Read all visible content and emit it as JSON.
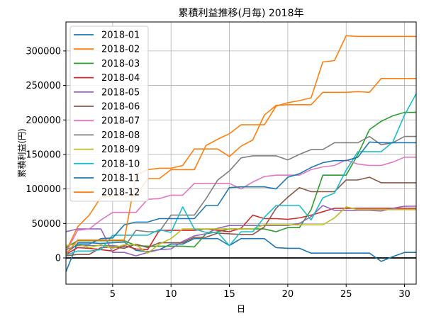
{
  "chart_data": {
    "type": "line",
    "title": "累積利益推移(月毎)  2018年",
    "xlabel": "日",
    "ylabel": "累積利益(円)",
    "xlim": [
      1,
      31
    ],
    "ylim": [
      -38000,
      342000
    ],
    "xticks": [
      5,
      10,
      15,
      20,
      25,
      30
    ],
    "yticks": [
      0,
      50000,
      100000,
      150000,
      200000,
      250000,
      300000
    ],
    "grid": true,
    "legend_position": "top-left",
    "zero_line": {
      "y": 0,
      "color": "#000000"
    },
    "series": [
      {
        "name": "2018-01",
        "color": "#1f77b4",
        "x": [
          1,
          2,
          3,
          4,
          5,
          6,
          7,
          8,
          9,
          10,
          11,
          12,
          13,
          14,
          15,
          16,
          17,
          18,
          19,
          20,
          21,
          22,
          23,
          24,
          25,
          26,
          27,
          28,
          29,
          30,
          31
        ],
        "values": [
          -20000,
          22000,
          22000,
          21000,
          22000,
          23000,
          11000,
          9000,
          12000,
          20000,
          20000,
          28000,
          28000,
          28000,
          18000,
          28000,
          28000,
          28000,
          15000,
          14000,
          14000,
          7000,
          7000,
          7000,
          7000,
          7000,
          7000,
          -5000,
          2000,
          8000,
          8000
        ]
      },
      {
        "name": "2018-02",
        "color": "#ff7f0e",
        "x": [
          1,
          2,
          3,
          4,
          5,
          6,
          7,
          8,
          9,
          10,
          11,
          12,
          13,
          14,
          15,
          16,
          17,
          18,
          19,
          20,
          21,
          22,
          23,
          24,
          25,
          26,
          27,
          28,
          29,
          30,
          31
        ],
        "values": [
          10000,
          45000,
          62000,
          88000,
          90000,
          90000,
          90000,
          115000,
          115000,
          128000,
          128000,
          128000,
          163000,
          172000,
          180000,
          193000,
          193000,
          193000,
          220000,
          225000,
          228000,
          232000,
          284000,
          286000,
          322000,
          321000,
          321000,
          321000,
          321000,
          321000,
          321000
        ]
      },
      {
        "name": "2018-03",
        "color": "#2ca02c",
        "x": [
          1,
          2,
          3,
          4,
          5,
          6,
          7,
          8,
          9,
          10,
          11,
          12,
          13,
          14,
          15,
          16,
          17,
          18,
          19,
          20,
          21,
          22,
          23,
          24,
          25,
          26,
          27,
          28,
          29,
          30,
          31
        ],
        "values": [
          15000,
          25000,
          25000,
          25000,
          25000,
          25000,
          18000,
          17000,
          17000,
          17000,
          17000,
          16000,
          35000,
          38000,
          42000,
          42000,
          42000,
          42000,
          38000,
          44000,
          44000,
          70000,
          120000,
          120000,
          120000,
          150000,
          186000,
          198000,
          206000,
          211000,
          211000
        ]
      },
      {
        "name": "2018-04",
        "color": "#d62728",
        "x": [
          1,
          2,
          3,
          4,
          5,
          6,
          7,
          8,
          9,
          10,
          11,
          12,
          13,
          14,
          15,
          16,
          17,
          18,
          19,
          20,
          21,
          22,
          23,
          24,
          25,
          26,
          27,
          28,
          29,
          30,
          31
        ],
        "values": [
          5000,
          15000,
          14000,
          12000,
          10000,
          18000,
          13000,
          12000,
          40000,
          40000,
          40000,
          40000,
          42000,
          40000,
          38000,
          43000,
          62000,
          57000,
          57000,
          56000,
          58000,
          62000,
          67000,
          72000,
          72000,
          72000,
          72000,
          72000,
          72000,
          72000,
          72000
        ]
      },
      {
        "name": "2018-05",
        "color": "#9467bd",
        "x": [
          1,
          2,
          3,
          4,
          5,
          6,
          7,
          8,
          9,
          10,
          11,
          12,
          13,
          14,
          15,
          16,
          17,
          18,
          19,
          20,
          21,
          22,
          23,
          24,
          25,
          26,
          27,
          28,
          29,
          30,
          31
        ],
        "values": [
          38000,
          42000,
          42000,
          42000,
          8000,
          8000,
          3000,
          8000,
          12000,
          13000,
          24000,
          32000,
          35000,
          43000,
          47000,
          47000,
          47000,
          47000,
          47000,
          47000,
          50000,
          60000,
          76000,
          69000,
          69000,
          69000,
          69000,
          68000,
          72000,
          75000,
          75000
        ]
      },
      {
        "name": "2018-06",
        "color": "#8c564b",
        "x": [
          1,
          2,
          3,
          4,
          5,
          6,
          7,
          8,
          9,
          10,
          11,
          12,
          13,
          14,
          15,
          16,
          17,
          18,
          19,
          20,
          21,
          22,
          23,
          24,
          25,
          26,
          27,
          28,
          29,
          30,
          31
        ],
        "values": [
          3000,
          5000,
          5000,
          15000,
          16000,
          14000,
          20000,
          15000,
          22000,
          22000,
          22000,
          30000,
          30000,
          36000,
          35000,
          34000,
          34000,
          45000,
          72000,
          88000,
          102000,
          96000,
          96000,
          96000,
          113000,
          113000,
          117000,
          109000,
          109000,
          109000,
          109000
        ]
      },
      {
        "name": "2018-07",
        "color": "#e377c2",
        "x": [
          1,
          2,
          3,
          4,
          5,
          6,
          7,
          8,
          9,
          10,
          11,
          12,
          13,
          14,
          15,
          16,
          17,
          18,
          19,
          20,
          21,
          22,
          23,
          24,
          25,
          26,
          27,
          28,
          29,
          30,
          31
        ],
        "values": [
          8000,
          40000,
          42000,
          55000,
          66000,
          66000,
          66000,
          85000,
          86000,
          91000,
          91000,
          108000,
          108000,
          108000,
          108000,
          100000,
          110000,
          118000,
          120000,
          120000,
          120000,
          128000,
          132000,
          134000,
          142000,
          136000,
          134000,
          134000,
          139000,
          146000,
          146000
        ]
      },
      {
        "name": "2018-08",
        "color": "#7f7f7f",
        "x": [
          1,
          2,
          3,
          4,
          5,
          6,
          7,
          8,
          9,
          10,
          11,
          12,
          13,
          14,
          15,
          16,
          17,
          18,
          19,
          20,
          21,
          22,
          23,
          24,
          25,
          26,
          27,
          28,
          29,
          30,
          31
        ],
        "values": [
          12000,
          18000,
          18000,
          18000,
          18000,
          16000,
          40000,
          38000,
          38000,
          62000,
          62000,
          62000,
          86000,
          113000,
          126000,
          145000,
          148000,
          148000,
          148000,
          142000,
          150000,
          157000,
          157000,
          167000,
          167000,
          167000,
          176000,
          164000,
          167000,
          176000,
          176000
        ]
      },
      {
        "name": "2018-09",
        "color": "#bcbd22",
        "x": [
          1,
          2,
          3,
          4,
          5,
          6,
          7,
          8,
          9,
          10,
          11,
          12,
          13,
          14,
          15,
          16,
          17,
          18,
          19,
          20,
          21,
          22,
          23,
          24,
          25,
          26,
          27,
          28,
          29,
          30,
          31
        ],
        "values": [
          18000,
          20000,
          15000,
          19000,
          14000,
          19000,
          19000,
          7000,
          20000,
          28000,
          42000,
          42000,
          42000,
          42000,
          42000,
          42000,
          42000,
          48000,
          48000,
          48000,
          48000,
          48000,
          48000,
          58000,
          74000,
          70000,
          70000,
          70000,
          70000,
          70000,
          70000
        ]
      },
      {
        "name": "2018-10",
        "color": "#17becf",
        "x": [
          1,
          2,
          3,
          4,
          5,
          6,
          7,
          8,
          9,
          10,
          11,
          12,
          13,
          14,
          15,
          16,
          17,
          18,
          19,
          20,
          21,
          22,
          23,
          24,
          25,
          26,
          27,
          28,
          29,
          30,
          31
        ],
        "values": [
          4000,
          10000,
          10000,
          12000,
          33000,
          33000,
          33000,
          33000,
          41000,
          37000,
          74000,
          42000,
          37000,
          37000,
          18000,
          38000,
          38000,
          59000,
          76000,
          76000,
          76000,
          55000,
          87000,
          94000,
          127000,
          154000,
          154000,
          154000,
          168000,
          207000,
          238000
        ]
      },
      {
        "name": "2018-11",
        "color": "#1f77b4",
        "x": [
          1,
          2,
          3,
          4,
          5,
          6,
          7,
          8,
          9,
          10,
          11,
          12,
          13,
          14,
          15,
          16,
          17,
          18,
          19,
          20,
          21,
          22,
          23,
          24,
          25,
          26,
          27,
          28,
          29,
          30,
          31
        ],
        "values": [
          7000,
          20000,
          20000,
          28000,
          29000,
          48000,
          52000,
          52000,
          57000,
          57000,
          57000,
          57000,
          76000,
          76000,
          102000,
          103000,
          103000,
          103000,
          100000,
          117000,
          122000,
          131000,
          138000,
          141000,
          141000,
          146000,
          168000,
          167000,
          167000,
          167000,
          167000
        ]
      },
      {
        "name": "2018-12",
        "color": "#ff7f0e",
        "x": [
          1,
          2,
          3,
          4,
          5,
          6,
          7,
          8,
          9,
          10,
          11,
          12,
          13,
          14,
          15,
          16,
          17,
          18,
          19,
          20,
          21,
          22,
          23,
          24,
          25,
          26,
          27,
          28,
          29,
          30,
          31
        ],
        "values": [
          5000,
          26000,
          26000,
          26000,
          26000,
          26000,
          120000,
          128000,
          130000,
          130000,
          134000,
          158000,
          158000,
          158000,
          147000,
          162000,
          171000,
          207000,
          221000,
          222000,
          222000,
          222000,
          240000,
          240000,
          240000,
          241000,
          240000,
          260000,
          260000,
          260000,
          260000
        ]
      }
    ]
  }
}
